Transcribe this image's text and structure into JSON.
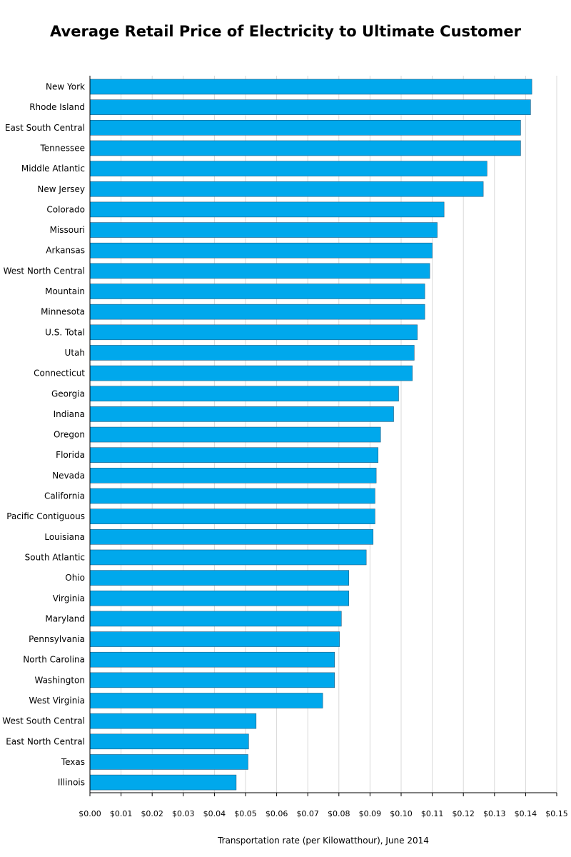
{
  "chart_data": {
    "type": "bar",
    "orientation": "horizontal",
    "title": "Average Retail Price of Electricity to Ultimate Customer",
    "xlabel": "Transportation rate (per Kilowatthour), June 2014",
    "ylabel": "",
    "xlim": [
      0,
      0.15
    ],
    "ticks": [
      0.0,
      0.01,
      0.02,
      0.03,
      0.04,
      0.05,
      0.06,
      0.07,
      0.08,
      0.09,
      0.1,
      0.11,
      0.12,
      0.13,
      0.14,
      0.15
    ],
    "tick_labels": [
      "$0.00",
      "$0.01",
      "$0.02",
      "$0.03",
      "$0.04",
      "$0.05",
      "$0.06",
      "$0.07",
      "$0.08",
      "$0.09",
      "$0.10",
      "$0.11",
      "$0.12",
      "$0.13",
      "$0.14",
      "$0.15"
    ],
    "grid": true,
    "bar_color": "#00A8EC",
    "categories": [
      "New York",
      "Rhode Island",
      "East South Central",
      "Tennessee",
      "Middle Atlantic",
      "New Jersey",
      "Colorado",
      "Missouri",
      "Arkansas",
      "West North Central",
      "Mountain",
      "Minnesota",
      "U.S. Total",
      "Utah",
      "Connecticut",
      "Georgia",
      "Indiana",
      "Oregon",
      "Florida",
      "Nevada",
      "California",
      "Pacific Contiguous",
      "Louisiana",
      "South Atlantic",
      "Ohio",
      "Virginia",
      "Maryland",
      "Pennsylvania",
      "North Carolina",
      "Washington",
      "West Virginia",
      "West South Central",
      "East North Central",
      "Texas",
      "Illinois"
    ],
    "values": [
      0.142,
      0.1416,
      0.1384,
      0.1384,
      0.1276,
      0.1264,
      0.1138,
      0.1116,
      0.11,
      0.1092,
      0.1076,
      0.1076,
      0.1052,
      0.1042,
      0.1036,
      0.0992,
      0.0976,
      0.0934,
      0.0926,
      0.092,
      0.0916,
      0.0916,
      0.091,
      0.0888,
      0.0832,
      0.0832,
      0.0808,
      0.0802,
      0.0786,
      0.0786,
      0.0748,
      0.0534,
      0.051,
      0.0508,
      0.047
    ]
  }
}
